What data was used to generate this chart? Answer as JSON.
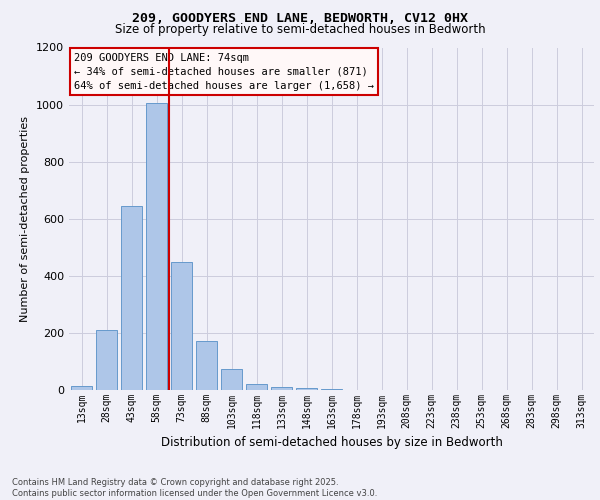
{
  "title_line1": "209, GOODYERS END LANE, BEDWORTH, CV12 0HX",
  "title_line2": "Size of property relative to semi-detached houses in Bedworth",
  "xlabel": "Distribution of semi-detached houses by size in Bedworth",
  "ylabel": "Number of semi-detached properties",
  "footer_line1": "Contains HM Land Registry data © Crown copyright and database right 2025.",
  "footer_line2": "Contains public sector information licensed under the Open Government Licence v3.0.",
  "annotation_line1": "209 GOODYERS END LANE: 74sqm",
  "annotation_line2": "← 34% of semi-detached houses are smaller (871)",
  "annotation_line3": "64% of semi-detached houses are larger (1,658) →",
  "bin_labels": [
    "13sqm",
    "28sqm",
    "43sqm",
    "58sqm",
    "73sqm",
    "88sqm",
    "103sqm",
    "118sqm",
    "133sqm",
    "148sqm",
    "163sqm",
    "178sqm",
    "193sqm",
    "208sqm",
    "223sqm",
    "238sqm",
    "253sqm",
    "268sqm",
    "283sqm",
    "298sqm",
    "313sqm"
  ],
  "bar_values": [
    14,
    210,
    645,
    1005,
    450,
    172,
    75,
    20,
    12,
    7,
    2,
    0,
    0,
    0,
    0,
    0,
    0,
    0,
    0,
    0,
    0
  ],
  "bar_color": "#aec6e8",
  "bar_edge_color": "#6699cc",
  "vline_index": 4,
  "vline_color": "#cc0000",
  "ylim": [
    0,
    1200
  ],
  "yticks": [
    0,
    200,
    400,
    600,
    800,
    1000,
    1200
  ],
  "background_color": "#f0f0f8",
  "grid_color": "#ccccdd",
  "annotation_box_facecolor": "#fff8f8",
  "annotation_box_edgecolor": "#cc0000",
  "title1_fontsize": 9.5,
  "title2_fontsize": 8.5,
  "ylabel_fontsize": 8,
  "xlabel_fontsize": 8.5,
  "tick_fontsize": 7,
  "annot_fontsize": 7.5,
  "footer_fontsize": 6
}
